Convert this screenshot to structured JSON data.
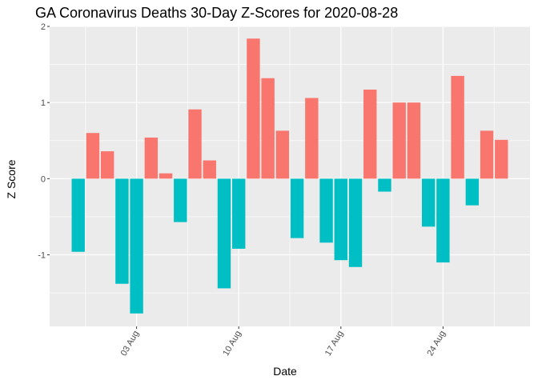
{
  "chart_data": {
    "type": "bar",
    "title": "GA Coronavirus Deaths 30-Day Z-Scores for 2020-08-28",
    "xlabel": "Date",
    "ylabel": "Z Score",
    "x": [
      "2020-07-30",
      "2020-07-31",
      "2020-08-01",
      "2020-08-02",
      "2020-08-03",
      "2020-08-04",
      "2020-08-05",
      "2020-08-06",
      "2020-08-07",
      "2020-08-08",
      "2020-08-09",
      "2020-08-10",
      "2020-08-11",
      "2020-08-12",
      "2020-08-13",
      "2020-08-14",
      "2020-08-15",
      "2020-08-16",
      "2020-08-17",
      "2020-08-18",
      "2020-08-19",
      "2020-08-20",
      "2020-08-21",
      "2020-08-22",
      "2020-08-23",
      "2020-08-24",
      "2020-08-25",
      "2020-08-26",
      "2020-08-27",
      "2020-08-28"
    ],
    "values": [
      -0.96,
      0.6,
      0.36,
      -1.38,
      -1.77,
      0.54,
      0.07,
      -0.57,
      0.91,
      0.24,
      -1.44,
      -0.92,
      1.84,
      1.32,
      0.63,
      -0.78,
      1.06,
      -0.84,
      -1.07,
      -1.16,
      1.17,
      -0.17,
      1.0,
      1.0,
      -0.63,
      -1.1,
      1.35,
      -0.35,
      0.63,
      0.51
    ],
    "x_tick_labels": [
      "03 Aug",
      "10 Aug",
      "17 Aug",
      "24 Aug"
    ],
    "x_tick_dates": [
      "2020-08-03",
      "2020-08-10",
      "2020-08-17",
      "2020-08-24"
    ],
    "y_ticks": [
      2,
      1,
      0,
      -1
    ],
    "y_tick_labels": [
      "2",
      "1",
      "0",
      "-1"
    ],
    "ylim": [
      -1.94,
      2.0
    ],
    "grid": true,
    "legend": "none",
    "colors": {
      "positive": "#f8766d",
      "negative": "#00bfc4",
      "panel": "#ebebeb",
      "grid_major": "#ffffff",
      "grid_minor": "#f5f5f5",
      "axis_text": "#4d4d4d",
      "title": "#000000"
    }
  }
}
